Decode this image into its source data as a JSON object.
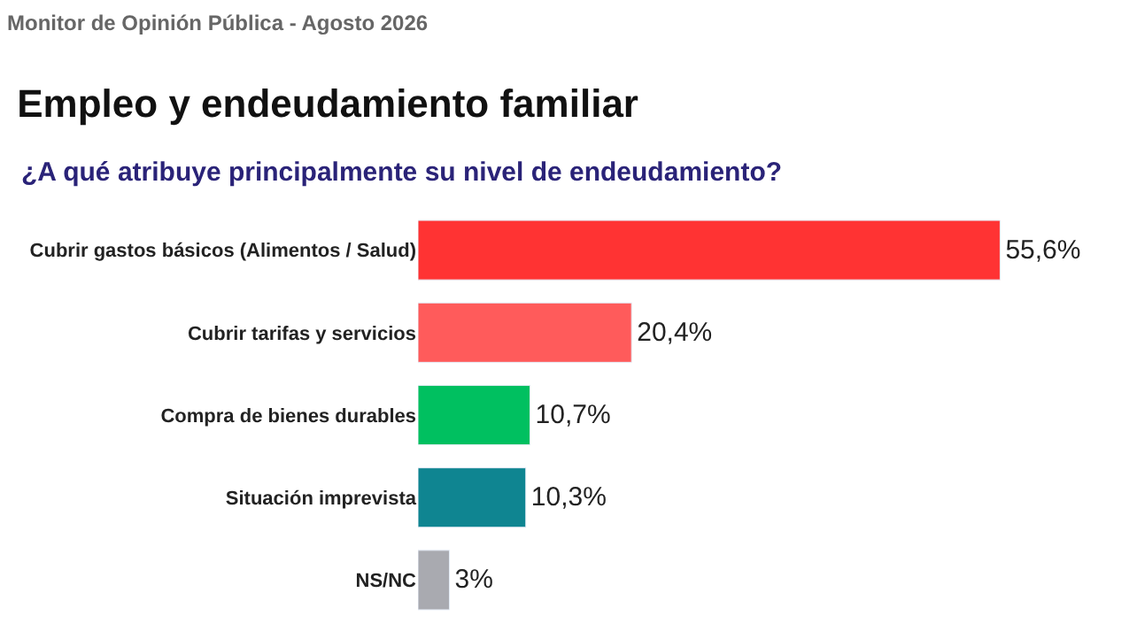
{
  "chart_data": {
    "type": "bar",
    "orientation": "horizontal",
    "title": "Empleo y endeudamiento familiar",
    "subtitle": "¿A qué atribuye principalmente su nivel de endeudamiento?",
    "annotations": [
      "Monitor de Opinión Pública - Agosto 2026"
    ],
    "categories": [
      "Cubrir gastos básicos (Alimentos / Salud)",
      "Cubrir tarifas y servicios",
      "Compra de bienes durables",
      "Situación imprevista",
      "NS/NC"
    ],
    "values": [
      55.6,
      20.4,
      10.7,
      10.3,
      3
    ],
    "colors": [
      "#ff3333",
      "#ff5b5b",
      "#00c060",
      "#0f8591",
      "#a9aab0"
    ],
    "value_labels": [
      "55,6%",
      "20,4%",
      "10,7%",
      "10,3%",
      "3%"
    ],
    "legend": false
  }
}
